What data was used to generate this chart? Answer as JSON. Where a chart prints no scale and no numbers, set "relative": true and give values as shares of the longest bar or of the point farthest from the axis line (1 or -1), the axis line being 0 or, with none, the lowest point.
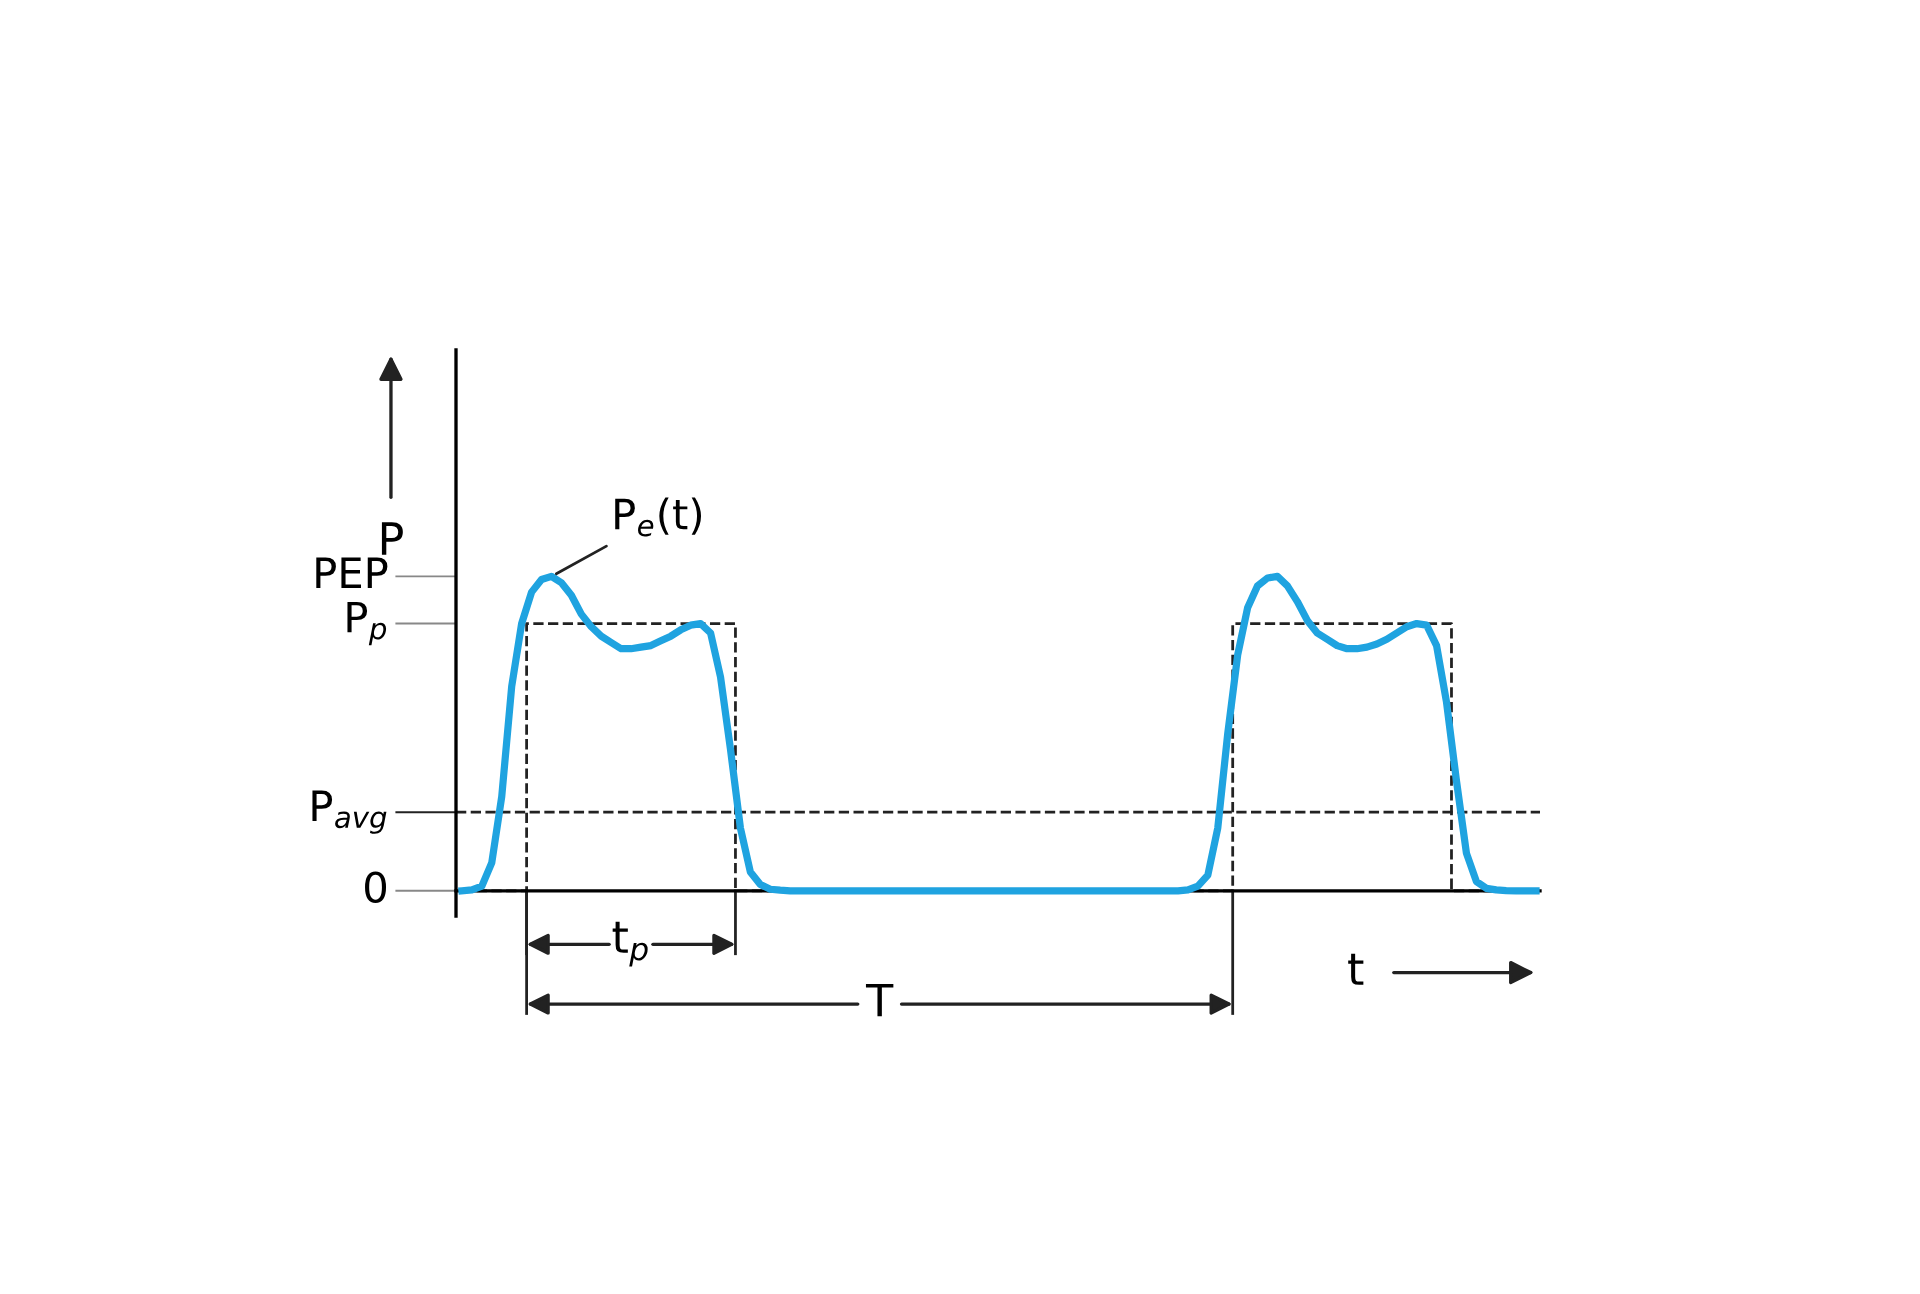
{
  "chart_data": {
    "type": "line",
    "relative": true,
    "xlabel": "t",
    "ylabel": "P",
    "categories": [
      null,
      null,
      null,
      null,
      null,
      null,
      null,
      null,
      null,
      null,
      null,
      null,
      null,
      null,
      null,
      null,
      null,
      null,
      null,
      null,
      null,
      null,
      null,
      null,
      null,
      null,
      null,
      null,
      null,
      null,
      null,
      null,
      null,
      null,
      null,
      null,
      null,
      null,
      null,
      null,
      null,
      null,
      null,
      null,
      null,
      null,
      null,
      null,
      null,
      null,
      null,
      null,
      null,
      null,
      null,
      null,
      null,
      null,
      null,
      null,
      null,
      null,
      null,
      null,
      null,
      null,
      null,
      null,
      null,
      null,
      null,
      null,
      null,
      null,
      null,
      null,
      null,
      null,
      null,
      null,
      null,
      null,
      null,
      null,
      null,
      null,
      null,
      null,
      null,
      null,
      null,
      null,
      null,
      null,
      null,
      null,
      null,
      null,
      null,
      null,
      null,
      null,
      null,
      null,
      null,
      null,
      null,
      null,
      null
    ],
    "series": [
      {
        "color": "#1fa3e0",
        "values": [
          0,
          0.003,
          0.015,
          0.09,
          0.3,
          0.65,
          0.85,
          0.95,
          0.99,
          1.0,
          0.98,
          0.94,
          0.88,
          0.84,
          0.81,
          0.79,
          0.77,
          0.77,
          0.775,
          0.78,
          0.795,
          0.81,
          0.83,
          0.845,
          0.85,
          0.82,
          0.68,
          0.45,
          0.2,
          0.06,
          0.02,
          0.005,
          0.002,
          0,
          0,
          0,
          0,
          0,
          0,
          0,
          0,
          0,
          0,
          0,
          0,
          0,
          0,
          0,
          0,
          0,
          0,
          0,
          0,
          0,
          0,
          0,
          0,
          0,
          0,
          0,
          0,
          0,
          0,
          0,
          0,
          0,
          0,
          0,
          0,
          0,
          0,
          0,
          0,
          0.003,
          0.015,
          0.05,
          0.2,
          0.5,
          0.75,
          0.9,
          0.97,
          0.995,
          1.0,
          0.97,
          0.92,
          0.86,
          0.82,
          0.8,
          0.78,
          0.77,
          0.77,
          0.775,
          0.785,
          0.8,
          0.82,
          0.84,
          0.85,
          0.845,
          0.78,
          0.6,
          0.35,
          0.12,
          0.03,
          0.008,
          0.003,
          0.001,
          0,
          0,
          0
        ]
      },
      {
        "type": "step",
        "line_style": "dashed",
        "color": "#222222",
        "values": [
          0,
          0,
          0,
          0,
          0,
          0,
          0,
          0.85,
          0.85,
          0.85,
          0.85,
          0.85,
          0.85,
          0.85,
          0.85,
          0.85,
          0.85,
          0.85,
          0.85,
          0.85,
          0.85,
          0.85,
          0.85,
          0.85,
          0.85,
          0.85,
          0.85,
          0.85,
          0,
          0,
          0,
          0,
          0,
          0,
          0,
          0,
          0,
          0,
          0,
          0,
          0,
          0,
          0,
          0,
          0,
          0,
          0,
          0,
          0,
          0,
          0,
          0,
          0,
          0,
          0,
          0,
          0,
          0,
          0,
          0,
          0,
          0,
          0,
          0,
          0,
          0,
          0,
          0,
          0,
          0,
          0,
          0,
          0,
          0,
          0,
          0,
          0,
          0,
          0.85,
          0.85,
          0.85,
          0.85,
          0.85,
          0.85,
          0.85,
          0.85,
          0.85,
          0.85,
          0.85,
          0.85,
          0.85,
          0.85,
          0.85,
          0.85,
          0.85,
          0.85,
          0.85,
          0.85,
          0.85,
          0.85,
          0,
          0,
          0,
          0,
          0,
          0,
          0,
          0,
          0
        ]
      }
    ],
    "ref_lines": [
      {
        "axis": "y",
        "value": 0,
        "label": "0"
      },
      {
        "axis": "y",
        "value": 0.25,
        "label": "P$_{avg}$",
        "line_style": "dashed",
        "color": "#222222"
      },
      {
        "axis": "y",
        "value": 0.85,
        "label": "P$_{p}$",
        "color": "#888888"
      },
      {
        "axis": "y",
        "value": 1,
        "label": "PEP",
        "color": "#888888"
      }
    ],
    "annotations": [
      "P$_{e}$(t)",
      "t$_{p}$",
      "T"
    ],
    "marker": "none",
    "line_style": "solid",
    "grid": false,
    "legend": false
  }
}
